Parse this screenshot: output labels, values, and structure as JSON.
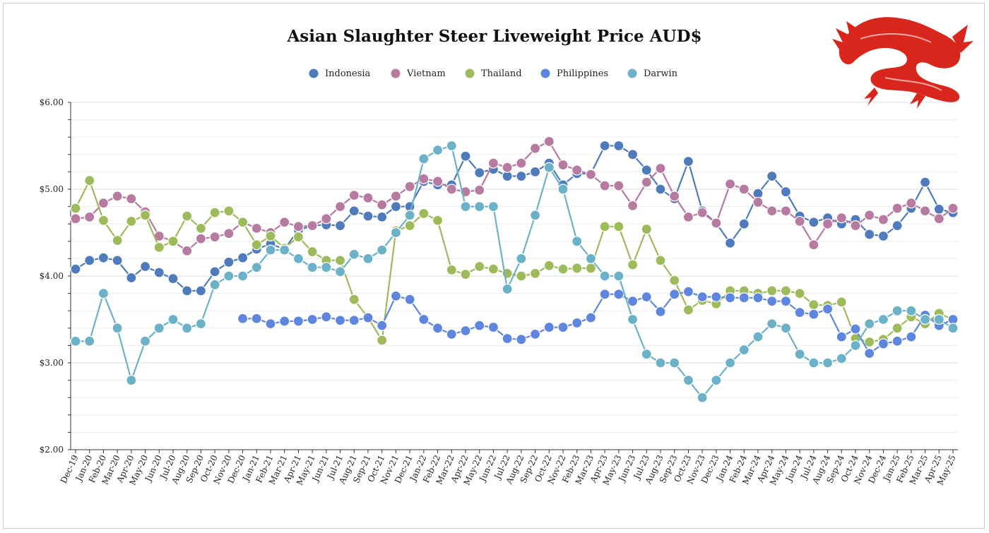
{
  "chart_data": {
    "type": "line",
    "title": "Asian Slaughter Steer Liveweight Price AUD$",
    "xlabel": "",
    "ylabel": "",
    "ylim": [
      2,
      6
    ],
    "yticks": [
      "$2.00",
      "$3.00",
      "$4.00",
      "$5.00",
      "$6.00"
    ],
    "grid": true,
    "legend_position": "top-center",
    "categories": [
      "Dec-19",
      "Jan-20",
      "Feb-20",
      "Mar-20",
      "Apr-20",
      "May-20",
      "Jun-20",
      "Jul-20",
      "Aug-20",
      "Sep-20",
      "Oct-20",
      "Nov-20",
      "Dec-20",
      "Jan-21",
      "Feb-21",
      "Mar-21",
      "Apr-21",
      "May-21",
      "Jun-21",
      "Jul-21",
      "Aug-21",
      "Sep-21",
      "Oct-21",
      "Nov-21",
      "Dec-21",
      "Jan-22",
      "Feb-22",
      "Mar-22",
      "Apr-22",
      "May-22",
      "Jun-22",
      "Jul-22",
      "Aug-22",
      "Sep-22",
      "Oct-22",
      "Nov-22",
      "Feb-23",
      "Mar-23",
      "Apr-23",
      "May-23",
      "Jun-23",
      "Jul-23",
      "Aug-23",
      "Sep-23",
      "Oct-23",
      "Nov-23",
      "Dec-23",
      "Jan-24",
      "Feb-24",
      "Mar-24",
      "Apr-24",
      "May-24",
      "Jun-24",
      "Jul-24",
      "Aug-24",
      "Sep-24",
      "Oct-24",
      "Nov-24",
      "Dec-24",
      "Jan-25",
      "Feb-25",
      "Mar-25",
      "Apr-25",
      "May-25"
    ],
    "series": [
      {
        "name": "Indonesia",
        "color": "#4f7bbd",
        "values": [
          4.08,
          4.18,
          4.21,
          4.18,
          3.98,
          4.11,
          4.04,
          3.97,
          3.83,
          3.83,
          4.05,
          4.16,
          4.21,
          4.31,
          4.37,
          4.31,
          4.53,
          4.58,
          4.59,
          4.58,
          4.75,
          4.69,
          4.68,
          4.8,
          4.8,
          5.09,
          5.05,
          5.05,
          5.38,
          5.19,
          5.23,
          5.15,
          5.15,
          5.2,
          5.3,
          5.05,
          5.18,
          5.18,
          5.5,
          5.5,
          5.4,
          5.22,
          5.0,
          4.89,
          5.32,
          4.75,
          4.61,
          4.38,
          4.6,
          4.95,
          5.15,
          4.97,
          4.69,
          4.62,
          4.67,
          4.6,
          4.65,
          4.48,
          4.46,
          4.58,
          4.78,
          5.08,
          4.77,
          4.73
        ]
      },
      {
        "name": "Vietnam",
        "color": "#b77aa0",
        "values": [
          4.66,
          4.68,
          4.84,
          4.92,
          4.89,
          4.74,
          4.46,
          4.4,
          4.29,
          4.43,
          4.45,
          4.49,
          4.62,
          4.55,
          4.5,
          4.62,
          4.57,
          4.58,
          4.66,
          4.8,
          4.93,
          4.9,
          4.82,
          4.92,
          5.03,
          5.12,
          5.09,
          5.0,
          4.97,
          4.99,
          5.3,
          5.25,
          5.3,
          5.47,
          5.55,
          5.28,
          5.22,
          5.17,
          5.04,
          5.04,
          4.81,
          5.08,
          5.24,
          4.92,
          4.68,
          4.73,
          4.61,
          5.06,
          5.0,
          4.85,
          4.75,
          4.75,
          4.63,
          4.36,
          4.6,
          4.67,
          4.58,
          4.7,
          4.65,
          4.78,
          4.84,
          4.75,
          4.66,
          4.78
        ]
      },
      {
        "name": "Thailand",
        "color": "#9ebb5c",
        "values": [
          4.78,
          5.1,
          4.64,
          4.41,
          4.63,
          4.7,
          4.33,
          4.4,
          4.69,
          4.55,
          4.73,
          4.75,
          4.62,
          4.36,
          4.46,
          4.32,
          4.45,
          4.28,
          4.18,
          4.18,
          3.73,
          3.52,
          3.26,
          4.52,
          4.58,
          4.72,
          4.64,
          4.07,
          4.02,
          4.11,
          4.08,
          4.03,
          4.0,
          4.03,
          4.12,
          4.08,
          4.09,
          4.09,
          4.57,
          4.57,
          4.13,
          4.54,
          4.18,
          3.95,
          3.61,
          3.72,
          3.68,
          3.83,
          3.83,
          3.8,
          3.83,
          3.83,
          3.8,
          3.67,
          3.66,
          3.7,
          3.28,
          3.24,
          3.27,
          3.4,
          3.53,
          3.45,
          3.57,
          3.5
        ]
      },
      {
        "name": "Philippines",
        "color": "#5f86de",
        "values": [
          null,
          null,
          null,
          null,
          null,
          null,
          null,
          null,
          null,
          null,
          null,
          null,
          3.51,
          3.51,
          3.45,
          3.48,
          3.48,
          3.5,
          3.53,
          3.49,
          3.49,
          3.52,
          3.43,
          3.77,
          3.73,
          3.5,
          3.4,
          3.33,
          3.37,
          3.43,
          3.41,
          3.28,
          3.27,
          3.33,
          3.41,
          3.41,
          3.46,
          3.52,
          3.79,
          3.79,
          3.71,
          3.76,
          3.59,
          3.79,
          3.82,
          3.76,
          3.76,
          3.75,
          3.75,
          3.75,
          3.71,
          3.71,
          3.58,
          3.56,
          3.62,
          3.3,
          3.39,
          3.11,
          3.22,
          3.25,
          3.3,
          3.55,
          3.43,
          3.5
        ]
      },
      {
        "name": "Darwin",
        "color": "#6bb2c8",
        "values": [
          3.25,
          3.25,
          3.8,
          3.4,
          2.8,
          3.25,
          3.4,
          3.5,
          3.4,
          3.45,
          3.9,
          4.0,
          4.0,
          4.1,
          4.3,
          4.3,
          4.2,
          4.1,
          4.1,
          4.05,
          4.25,
          4.2,
          4.3,
          4.5,
          4.7,
          5.35,
          5.45,
          5.5,
          4.8,
          4.8,
          4.8,
          3.85,
          4.2,
          4.7,
          5.25,
          5.0,
          4.4,
          4.2,
          4.0,
          4.0,
          3.5,
          3.1,
          3.0,
          3.0,
          2.8,
          2.6,
          2.8,
          3.0,
          3.15,
          3.3,
          3.45,
          3.4,
          3.1,
          3.0,
          3.0,
          3.05,
          3.2,
          3.45,
          3.5,
          3.6,
          3.6,
          3.5,
          3.5,
          3.4
        ]
      }
    ]
  }
}
